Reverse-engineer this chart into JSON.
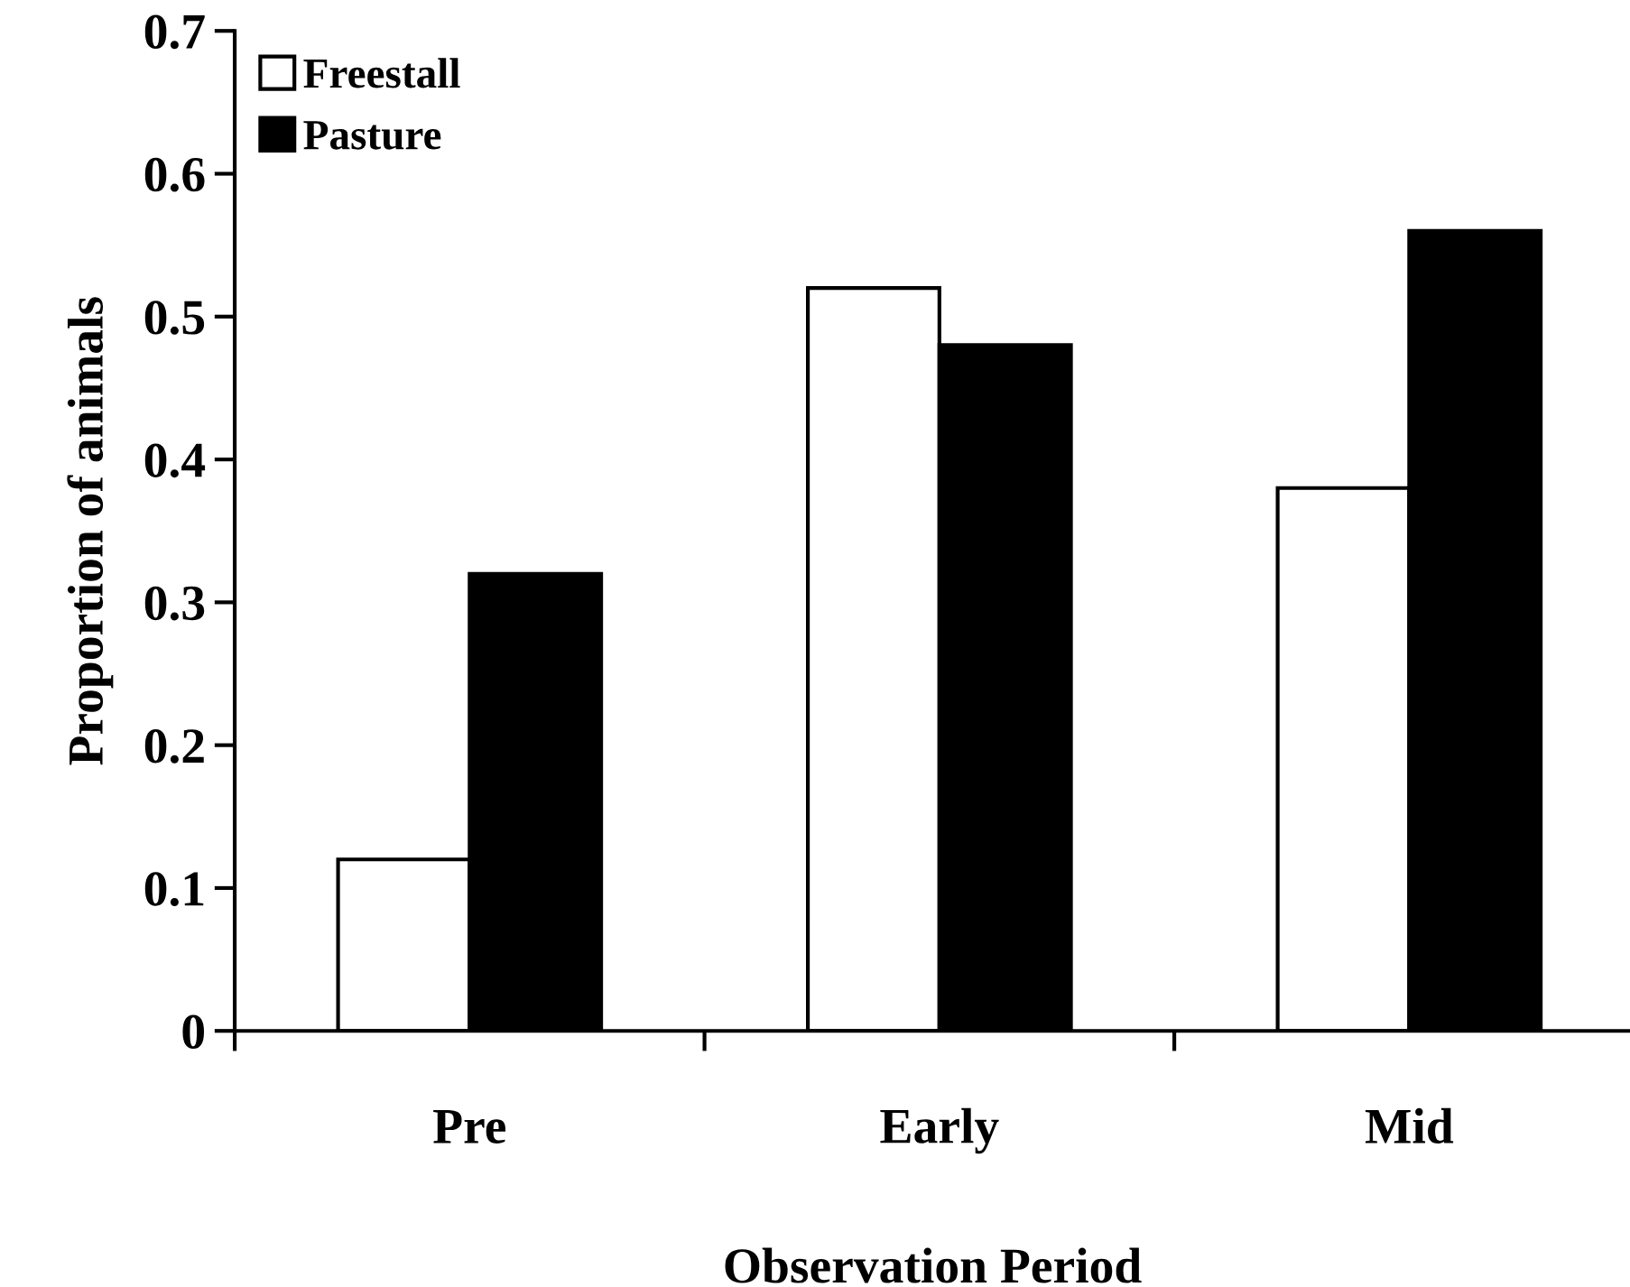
{
  "chart_data": {
    "type": "bar",
    "xlabel": "Observation Period",
    "ylabel": "Proportion of animals",
    "categories": [
      "Pre",
      "Early",
      "Mid"
    ],
    "series": [
      {
        "name": "Freestall",
        "color": "#ffffff",
        "values": [
          0.12,
          0.52,
          0.38
        ]
      },
      {
        "name": "Pasture",
        "color": "#000000",
        "values": [
          0.32,
          0.48,
          0.56
        ]
      }
    ],
    "ylim": [
      0,
      0.7
    ],
    "yticks": [
      0,
      0.1,
      0.2,
      0.3,
      0.4,
      0.5,
      0.6,
      0.7
    ],
    "grid": false,
    "legend": "top left"
  }
}
